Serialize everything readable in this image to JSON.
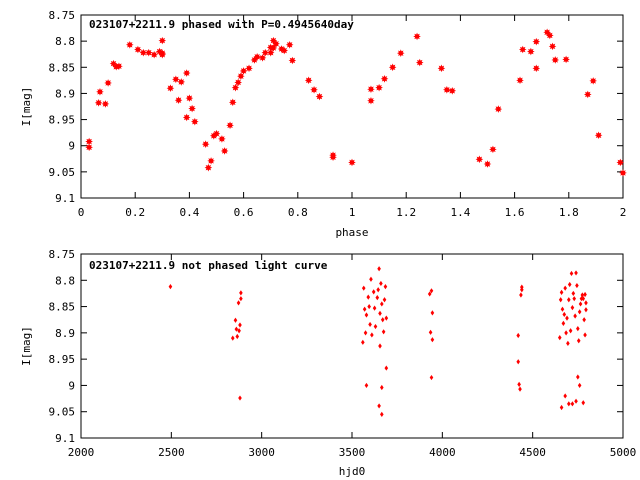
{
  "chart_data": [
    {
      "type": "scatter",
      "title": "023107+2211.9 phased with P=0.4945640day",
      "xlabel": "phase",
      "ylabel": "I[mag]",
      "xlim": [
        0,
        2
      ],
      "ylim": [
        8.75,
        9.1
      ],
      "y_inverted": true,
      "x_ticks": [
        0,
        0.2,
        0.4,
        0.6,
        0.8,
        1,
        1.2,
        1.4,
        1.6,
        1.8,
        2
      ],
      "x_tick_labels": [
        "0",
        "0.2",
        "0.4",
        "0.6",
        "0.8",
        "1",
        "1.2",
        "1.4",
        "1.6",
        "1.8",
        "2"
      ],
      "y_ticks": [
        8.75,
        8.8,
        8.85,
        8.9,
        8.95,
        9,
        9.05,
        9.1
      ],
      "y_tick_labels": [
        "8.75",
        "8.8",
        "8.85",
        "8.9",
        "8.95",
        "9",
        "9.05",
        "9.1"
      ],
      "marker": "filled-star",
      "color": "#ff0000",
      "points": [
        [
          0.03,
          8.992
        ],
        [
          0.03,
          9.003
        ],
        [
          0.065,
          8.918
        ],
        [
          0.07,
          8.897
        ],
        [
          0.09,
          8.92
        ],
        [
          0.1,
          8.88
        ],
        [
          0.12,
          8.843
        ],
        [
          0.13,
          8.849
        ],
        [
          0.14,
          8.848
        ],
        [
          0.18,
          8.807
        ],
        [
          0.21,
          8.816
        ],
        [
          0.23,
          8.822
        ],
        [
          0.25,
          8.822
        ],
        [
          0.27,
          8.826
        ],
        [
          0.29,
          8.82
        ],
        [
          0.3,
          8.799
        ],
        [
          0.3,
          8.823
        ],
        [
          0.3,
          8.826
        ],
        [
          0.33,
          8.89
        ],
        [
          0.35,
          8.873
        ],
        [
          0.36,
          8.913
        ],
        [
          0.37,
          8.878
        ],
        [
          0.39,
          8.861
        ],
        [
          0.39,
          8.946
        ],
        [
          0.4,
          8.909
        ],
        [
          0.41,
          8.929
        ],
        [
          0.42,
          8.954
        ],
        [
          0.46,
          8.997
        ],
        [
          0.47,
          9.042
        ],
        [
          0.48,
          9.029
        ],
        [
          0.49,
          8.981
        ],
        [
          0.5,
          8.977
        ],
        [
          0.52,
          8.987
        ],
        [
          0.53,
          9.01
        ],
        [
          0.55,
          8.961
        ],
        [
          0.56,
          8.917
        ],
        [
          0.57,
          8.889
        ],
        [
          0.58,
          8.879
        ],
        [
          0.59,
          8.867
        ],
        [
          0.6,
          8.857
        ],
        [
          0.62,
          8.852
        ],
        [
          0.64,
          8.836
        ],
        [
          0.65,
          8.83
        ],
        [
          0.67,
          8.832
        ],
        [
          0.68,
          8.822
        ],
        [
          0.7,
          8.822
        ],
        [
          0.7,
          8.812
        ],
        [
          0.71,
          8.813
        ],
        [
          0.71,
          8.799
        ],
        [
          0.72,
          8.805
        ],
        [
          0.74,
          8.815
        ],
        [
          0.75,
          8.818
        ],
        [
          0.77,
          8.807
        ],
        [
          0.78,
          8.837
        ],
        [
          0.84,
          8.875
        ],
        [
          0.86,
          8.893
        ],
        [
          0.88,
          8.906
        ],
        [
          0.93,
          9.018
        ],
        [
          0.93,
          9.022
        ],
        [
          1.0,
          9.032
        ],
        [
          1.07,
          8.892
        ],
        [
          1.07,
          8.914
        ],
        [
          1.1,
          8.889
        ],
        [
          1.12,
          8.872
        ],
        [
          1.15,
          8.85
        ],
        [
          1.18,
          8.823
        ],
        [
          1.24,
          8.791
        ],
        [
          1.25,
          8.841
        ],
        [
          1.33,
          8.852
        ],
        [
          1.35,
          8.893
        ],
        [
          1.37,
          8.895
        ],
        [
          1.47,
          9.026
        ],
        [
          1.5,
          9.035
        ],
        [
          1.52,
          9.007
        ],
        [
          1.54,
          8.93
        ],
        [
          1.62,
          8.875
        ],
        [
          1.63,
          8.816
        ],
        [
          1.66,
          8.82
        ],
        [
          1.68,
          8.852
        ],
        [
          1.68,
          8.801
        ],
        [
          1.72,
          8.783
        ],
        [
          1.73,
          8.789
        ],
        [
          1.74,
          8.81
        ],
        [
          1.75,
          8.836
        ],
        [
          1.79,
          8.835
        ],
        [
          1.87,
          8.902
        ],
        [
          1.89,
          8.876
        ],
        [
          1.91,
          8.98
        ],
        [
          1.99,
          9.032
        ],
        [
          2.0,
          9.052
        ]
      ]
    },
    {
      "type": "scatter",
      "title": "023107+2211.9 not phased light curve",
      "xlabel": "hjd0",
      "ylabel": "I[mag]",
      "xlim": [
        2000,
        5000
      ],
      "ylim": [
        8.75,
        9.1
      ],
      "y_inverted": true,
      "x_ticks": [
        2000,
        2500,
        3000,
        3500,
        4000,
        4500,
        5000
      ],
      "x_tick_labels": [
        "2000",
        "2500",
        "3000",
        "3500",
        "4000",
        "4500",
        "5000"
      ],
      "y_ticks": [
        8.75,
        8.8,
        8.85,
        8.9,
        8.95,
        9,
        9.05,
        9.1
      ],
      "y_tick_labels": [
        "8.75",
        "8.8",
        "8.85",
        "8.9",
        "8.95",
        "9",
        "9.05",
        "9.1"
      ],
      "marker": "small-diamond",
      "color": "#ff0000",
      "points": [
        [
          2495,
          8.812
        ],
        [
          2840,
          8.91
        ],
        [
          2855,
          8.876
        ],
        [
          2860,
          8.893
        ],
        [
          2865,
          8.907
        ],
        [
          2872,
          8.843
        ],
        [
          2875,
          8.896
        ],
        [
          2880,
          8.885
        ],
        [
          2885,
          8.824
        ],
        [
          2885,
          8.835
        ],
        [
          2880,
          9.024
        ],
        [
          3560,
          8.918
        ],
        [
          3565,
          8.815
        ],
        [
          3570,
          8.855
        ],
        [
          3580,
          8.866
        ],
        [
          3590,
          8.832
        ],
        [
          3595,
          8.85
        ],
        [
          3575,
          8.9
        ],
        [
          3600,
          8.884
        ],
        [
          3610,
          8.904
        ],
        [
          3605,
          8.798
        ],
        [
          3620,
          8.822
        ],
        [
          3625,
          8.853
        ],
        [
          3630,
          8.888
        ],
        [
          3640,
          8.833
        ],
        [
          3645,
          8.818
        ],
        [
          3650,
          8.778
        ],
        [
          3655,
          8.863
        ],
        [
          3655,
          8.925
        ],
        [
          3660,
          8.806
        ],
        [
          3665,
          8.845
        ],
        [
          3670,
          8.875
        ],
        [
          3675,
          8.898
        ],
        [
          3680,
          8.837
        ],
        [
          3685,
          8.812
        ],
        [
          3690,
          8.967
        ],
        [
          3650,
          9.039
        ],
        [
          3665,
          9.055
        ],
        [
          3665,
          9.004
        ],
        [
          3580,
          9.0
        ],
        [
          3690,
          8.872
        ],
        [
          3930,
          8.826
        ],
        [
          3935,
          8.899
        ],
        [
          3940,
          8.82
        ],
        [
          3945,
          8.862
        ],
        [
          3945,
          8.913
        ],
        [
          3940,
          8.985
        ],
        [
          4420,
          8.905
        ],
        [
          4420,
          8.955
        ],
        [
          4425,
          8.998
        ],
        [
          4430,
          9.007
        ],
        [
          4435,
          8.828
        ],
        [
          4440,
          8.813
        ],
        [
          4440,
          8.818
        ],
        [
          4650,
          8.909
        ],
        [
          4655,
          8.837
        ],
        [
          4660,
          8.823
        ],
        [
          4665,
          8.855
        ],
        [
          4670,
          8.882
        ],
        [
          4675,
          8.865
        ],
        [
          4680,
          8.815
        ],
        [
          4685,
          8.9
        ],
        [
          4690,
          8.872
        ],
        [
          4695,
          8.92
        ],
        [
          4700,
          8.837
        ],
        [
          4705,
          8.808
        ],
        [
          4710,
          8.896
        ],
        [
          4715,
          8.787
        ],
        [
          4720,
          8.852
        ],
        [
          4725,
          8.825
        ],
        [
          4730,
          8.835
        ],
        [
          4735,
          8.868
        ],
        [
          4740,
          8.786
        ],
        [
          4745,
          8.81
        ],
        [
          4750,
          8.892
        ],
        [
          4755,
          8.915
        ],
        [
          4760,
          8.86
        ],
        [
          4765,
          8.845
        ],
        [
          4770,
          8.835
        ],
        [
          4775,
          8.828
        ],
        [
          4780,
          8.835
        ],
        [
          4785,
          8.875
        ],
        [
          4790,
          8.827
        ],
        [
          4795,
          8.843
        ],
        [
          4790,
          8.904
        ],
        [
          4795,
          8.856
        ],
        [
          4660,
          9.042
        ],
        [
          4680,
          9.02
        ],
        [
          4700,
          9.035
        ],
        [
          4740,
          9.03
        ],
        [
          4760,
          9.0
        ],
        [
          4780,
          9.033
        ],
        [
          4750,
          8.984
        ],
        [
          4720,
          9.035
        ]
      ]
    }
  ]
}
